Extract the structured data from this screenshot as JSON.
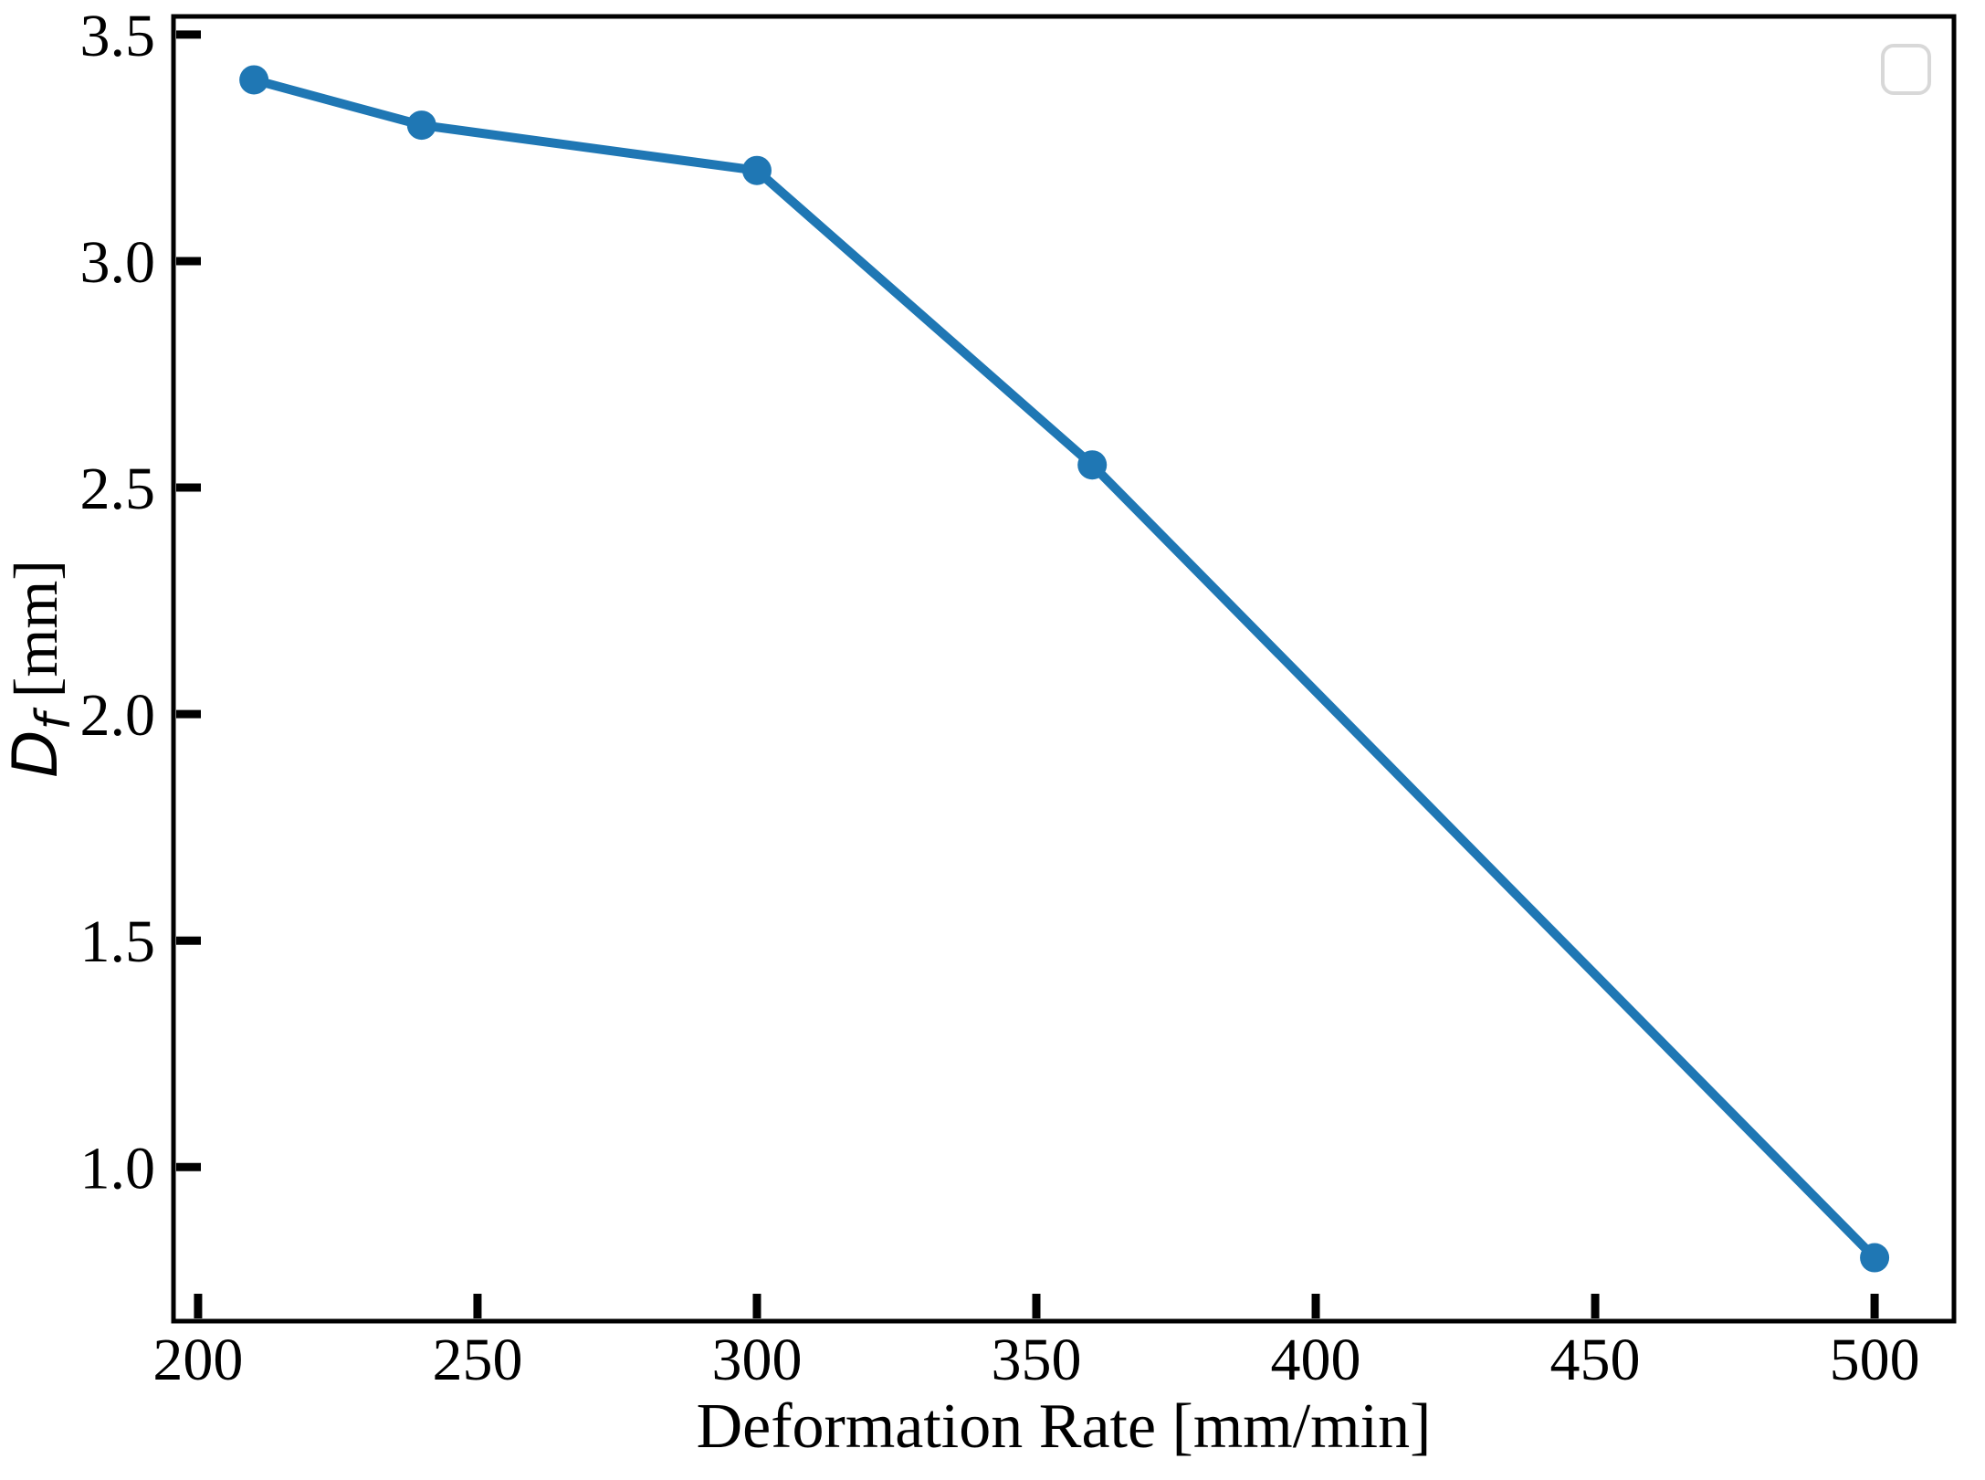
{
  "figure": {
    "background": "#ffffff",
    "axis_color": "#000000",
    "text_color": "#000000"
  },
  "chart_data": {
    "type": "line",
    "title": "",
    "xlabel": "Deformation Rate [mm/min]",
    "ylabel": "D_f [mm]",
    "ylabel_parts": {
      "variable": "D",
      "subscript": "f",
      "unit": " [mm]"
    },
    "series": [
      {
        "name": "",
        "x": [
          210,
          240,
          300,
          360,
          500
        ],
        "y": [
          3.4,
          3.3,
          3.2,
          2.55,
          0.8
        ],
        "color": "#1f77b4",
        "marker": "circle",
        "marker_radius": 16,
        "line_width": 10
      }
    ],
    "xlim": [
      195.6,
      514.2
    ],
    "ylim": [
      0.66,
      3.54
    ],
    "xticks": [
      "200",
      "250",
      "300",
      "350",
      "400",
      "450",
      "500"
    ],
    "yticks": [
      "1.0",
      "1.5",
      "2.0",
      "2.5",
      "3.0",
      "3.5"
    ],
    "grid": false,
    "tick_direction": "in",
    "legend": {
      "visible": true,
      "entries": [],
      "position": "upper-right",
      "border_color": "#d8d8d8",
      "fill_color": "#ffffff"
    }
  }
}
